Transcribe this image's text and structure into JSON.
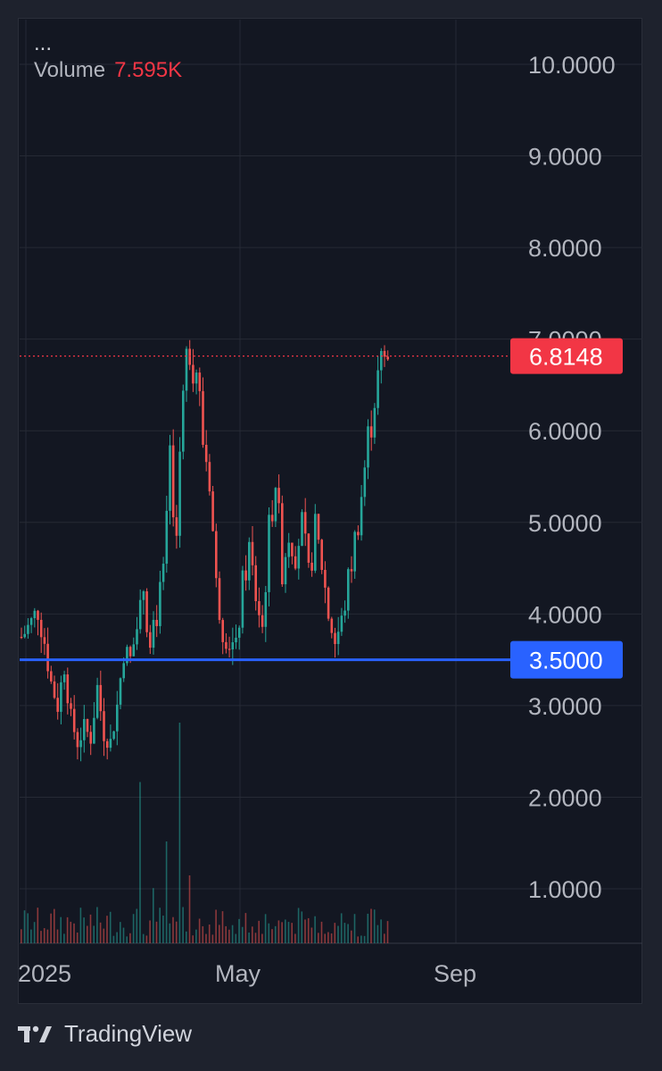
{
  "legend": {
    "menu_dots": "...",
    "volume_label": "Volume",
    "volume_value": "7.595K"
  },
  "footer": {
    "brand": "TradingView",
    "logo_icon": "tradingview-logo-icon"
  },
  "colors": {
    "background": "#131722",
    "up": "#26a69a",
    "down": "#ef5350",
    "price_badge": "#f23645",
    "level_line": "#2962ff",
    "grid": "#262a35",
    "axis_text": "#b2b5be"
  },
  "chart_data": {
    "type": "candlestick",
    "y_ticks": [
      "10.0000",
      "9.0000",
      "8.0000",
      "7.0000",
      "6.0000",
      "5.0000",
      "4.0000",
      "3.0000",
      "2.0000",
      "1.0000"
    ],
    "y_tick_values": [
      10,
      9,
      8,
      7,
      6,
      5,
      4,
      3,
      2,
      1
    ],
    "x_ticks": [
      "2025",
      "May",
      "Sep"
    ],
    "ylim": [
      0.4,
      10.3
    ],
    "last_price": {
      "value": 6.8148,
      "label": "6.8148"
    },
    "horizontal_level": {
      "value": 3.5,
      "label": "3.5000"
    },
    "close_path": [
      [
        0,
        3.75
      ],
      [
        3,
        3.9
      ],
      [
        5,
        4.05
      ],
      [
        7,
        3.7
      ],
      [
        9,
        3.25
      ],
      [
        11,
        3.0
      ],
      [
        13,
        3.45
      ],
      [
        15,
        2.85
      ],
      [
        17,
        2.6
      ],
      [
        19,
        2.75
      ],
      [
        21,
        2.65
      ],
      [
        23,
        3.2
      ],
      [
        25,
        2.7
      ],
      [
        27,
        2.6
      ],
      [
        29,
        3.0
      ],
      [
        31,
        3.6
      ],
      [
        33,
        3.5
      ],
      [
        35,
        3.85
      ],
      [
        37,
        4.3
      ],
      [
        39,
        3.6
      ],
      [
        41,
        4.0
      ],
      [
        43,
        4.4
      ],
      [
        45,
        5.6
      ],
      [
        47,
        4.9
      ],
      [
        49,
        6.7
      ],
      [
        51,
        6.9
      ],
      [
        53,
        6.7
      ],
      [
        55,
        5.9
      ],
      [
        57,
        5.5
      ],
      [
        59,
        4.3
      ],
      [
        61,
        3.85
      ],
      [
        63,
        3.7
      ],
      [
        65,
        3.6
      ],
      [
        67,
        4.3
      ],
      [
        69,
        4.7
      ],
      [
        71,
        4.2
      ],
      [
        73,
        3.85
      ],
      [
        75,
        4.9
      ],
      [
        77,
        5.5
      ],
      [
        79,
        4.5
      ],
      [
        81,
        4.9
      ],
      [
        83,
        4.7
      ],
      [
        85,
        4.95
      ],
      [
        87,
        4.4
      ],
      [
        89,
        4.9
      ],
      [
        91,
        4.55
      ],
      [
        93,
        4.0
      ],
      [
        95,
        3.7
      ],
      [
        97,
        3.9
      ],
      [
        99,
        4.35
      ],
      [
        101,
        4.8
      ],
      [
        103,
        5.3
      ],
      [
        105,
        5.9
      ],
      [
        107,
        6.4
      ],
      [
        109,
        6.7
      ],
      [
        111,
        6.81
      ]
    ],
    "volume": {
      "spikes": [
        {
          "i": 36,
          "v": 1.9
        },
        {
          "i": 44,
          "v": 1.2
        },
        {
          "i": 48,
          "v": 2.6
        },
        {
          "i": 51,
          "v": 0.8
        },
        {
          "i": 40,
          "v": 0.65
        }
      ]
    }
  }
}
